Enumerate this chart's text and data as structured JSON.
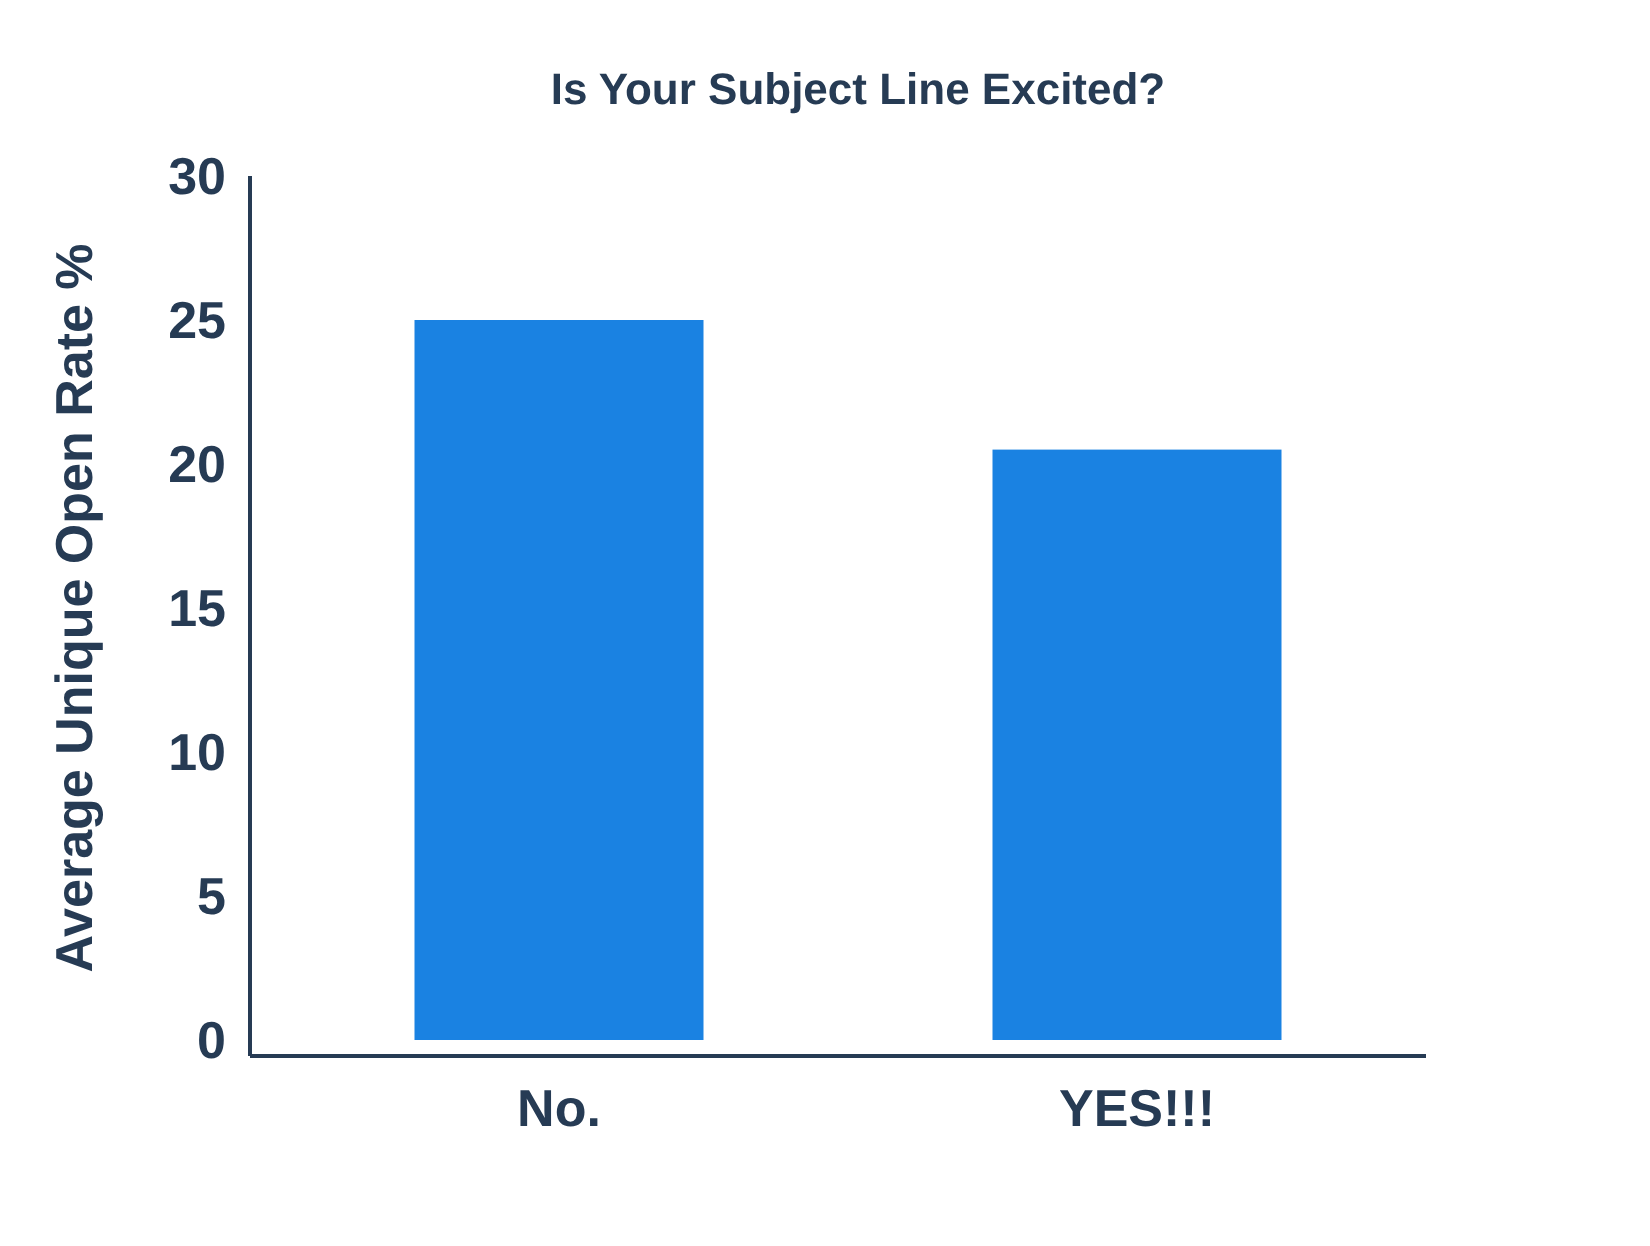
{
  "chart_data": {
    "type": "bar",
    "title": "Is Your Subject Line Excited?",
    "ylabel": "Average Unique Open Rate %",
    "categories": [
      "No.",
      "YES!!!"
    ],
    "values": [
      25,
      20.5
    ],
    "color": "#1a82e2",
    "ylim": [
      0,
      30
    ],
    "yticks": [
      0,
      5,
      10,
      15,
      20,
      25,
      30
    ],
    "grid": false
  }
}
